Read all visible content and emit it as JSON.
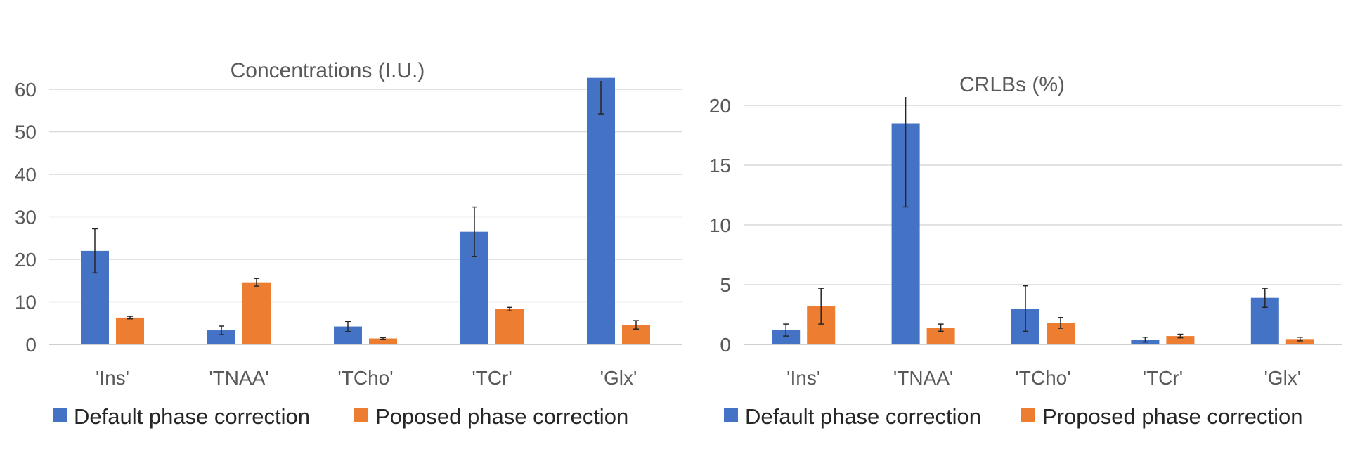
{
  "chart_data": [
    {
      "type": "bar",
      "title": "Concentrations (I.U.)",
      "xlabel": "",
      "ylabel": "",
      "categories": [
        "'Ins'",
        "'TNAA'",
        "'TCho'",
        "'TCr'",
        "'Glx'"
      ],
      "ylim": [
        0,
        60
      ],
      "yticks": [
        0,
        10,
        20,
        30,
        40,
        50,
        60
      ],
      "grid": true,
      "legend_position": "bottom",
      "series": [
        {
          "name": "Default phase correction",
          "color": "#4472C4",
          "values": [
            22,
            3.3,
            4.2,
            26.5,
            62.7
          ],
          "errors": [
            5.2,
            1.0,
            1.2,
            5.8,
            8.5
          ]
        },
        {
          "name": "Poposed phase correction",
          "color": "#ED7D31",
          "values": [
            6.3,
            14.6,
            1.4,
            8.3,
            4.6
          ],
          "errors": [
            0.3,
            0.9,
            0.2,
            0.4,
            1.0
          ]
        }
      ]
    },
    {
      "type": "bar",
      "title": "CRLBs (%)",
      "xlabel": "",
      "ylabel": "",
      "categories": [
        "'Ins'",
        "'TNAA'",
        "'TCho'",
        "'TCr'",
        "'Glx'"
      ],
      "ylim": [
        0,
        20
      ],
      "yticks": [
        0,
        5,
        10,
        15,
        20
      ],
      "grid": true,
      "legend_position": "bottom",
      "series": [
        {
          "name": "Default phase correction",
          "color": "#4472C4",
          "values": [
            1.2,
            18.5,
            3.0,
            0.4,
            3.9
          ],
          "errors": [
            0.5,
            7.0,
            1.9,
            0.2,
            0.8
          ]
        },
        {
          "name": "Proposed phase correction",
          "color": "#ED7D31",
          "values": [
            3.2,
            1.4,
            1.8,
            0.7,
            0.45
          ],
          "errors": [
            1.5,
            0.3,
            0.45,
            0.15,
            0.15
          ]
        }
      ]
    }
  ]
}
